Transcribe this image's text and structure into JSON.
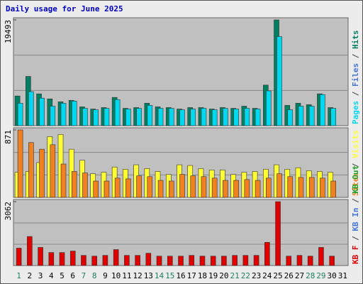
{
  "title": "Daily usage for June 2025",
  "chart_data": [
    {
      "type": "bar",
      "ylim": [
        0,
        19493
      ],
      "yticks": [
        19493
      ],
      "series": [
        {
          "name": "Pages",
          "color": "#00D8F0"
        },
        {
          "name": "Files",
          "color": "#4477DD"
        },
        {
          "name": "Hits",
          "color": "#008060"
        }
      ],
      "bars": [
        {
          "series": 2,
          "values": [
            5470,
            9080,
            5870,
            4940,
            4400,
            4670,
            3470,
            3070,
            3340,
            5210,
            3200,
            3340,
            4140,
            3470,
            3340,
            3070,
            3340,
            3340,
            3070,
            3340,
            3200,
            3600,
            3200,
            7480,
            19493,
            3740,
            4140,
            3870,
            5870,
            3340,
            0
          ]
        },
        {
          "series": 0,
          "values": [
            4140,
            6270,
            5070,
            3600,
            4140,
            4540,
            3200,
            2940,
            3200,
            4810,
            3070,
            3200,
            3740,
            3200,
            3200,
            2940,
            3070,
            3200,
            2940,
            3200,
            3070,
            3200,
            3070,
            6410,
            16420,
            2940,
            3600,
            3600,
            5740,
            3200,
            0
          ]
        }
      ]
    },
    {
      "type": "bar",
      "ylim": [
        0,
        871
      ],
      "yticks": [
        871
      ],
      "series": [
        {
          "name": "Sites",
          "color": "#F08020"
        },
        {
          "name": "Visits",
          "color": "#FFFF33"
        }
      ],
      "bars": [
        {
          "series": 1,
          "values": [
            325,
            335,
            450,
            785,
            813,
            622,
            479,
            306,
            325,
            392,
            364,
            421,
            373,
            335,
            297,
            421,
            412,
            373,
            354,
            354,
            297,
            325,
            335,
            364,
            421,
            364,
            383,
            345,
            335,
            325,
            0
          ]
        },
        {
          "series": 0,
          "values": [
            871,
            708,
            622,
            680,
            431,
            335,
            316,
            211,
            211,
            249,
            239,
            278,
            268,
            220,
            211,
            297,
            278,
            268,
            249,
            220,
            220,
            230,
            220,
            249,
            306,
            268,
            258,
            258,
            249,
            211,
            0
          ]
        }
      ]
    },
    {
      "type": "bar",
      "ylim": [
        0,
        3062
      ],
      "yticks": [
        3062
      ],
      "series": [
        {
          "name": "KB F",
          "color": "#E00000"
        },
        {
          "name": "KB In",
          "color": "#4477DD"
        },
        {
          "name": "KB Out",
          "color": "#20A020"
        }
      ],
      "bars": [
        {
          "series": 0,
          "values": [
            835,
            1392,
            870,
            626,
            626,
            696,
            487,
            452,
            487,
            766,
            487,
            487,
            592,
            452,
            452,
            452,
            487,
            452,
            452,
            452,
            487,
            487,
            487,
            1113,
            3062,
            452,
            487,
            452,
            870,
            452,
            0
          ]
        }
      ],
      "categories": [
        "1",
        "2",
        "3",
        "4",
        "5",
        "6",
        "7",
        "8",
        "9",
        "10",
        "11",
        "12",
        "13",
        "14",
        "15",
        "16",
        "17",
        "18",
        "19",
        "20",
        "21",
        "22",
        "23",
        "24",
        "25",
        "26",
        "27",
        "28",
        "29",
        "30",
        "31"
      ],
      "weekend_color": "#208060",
      "weekend_indices": [
        0,
        6,
        7,
        13,
        14,
        20,
        21,
        27,
        28
      ]
    }
  ]
}
